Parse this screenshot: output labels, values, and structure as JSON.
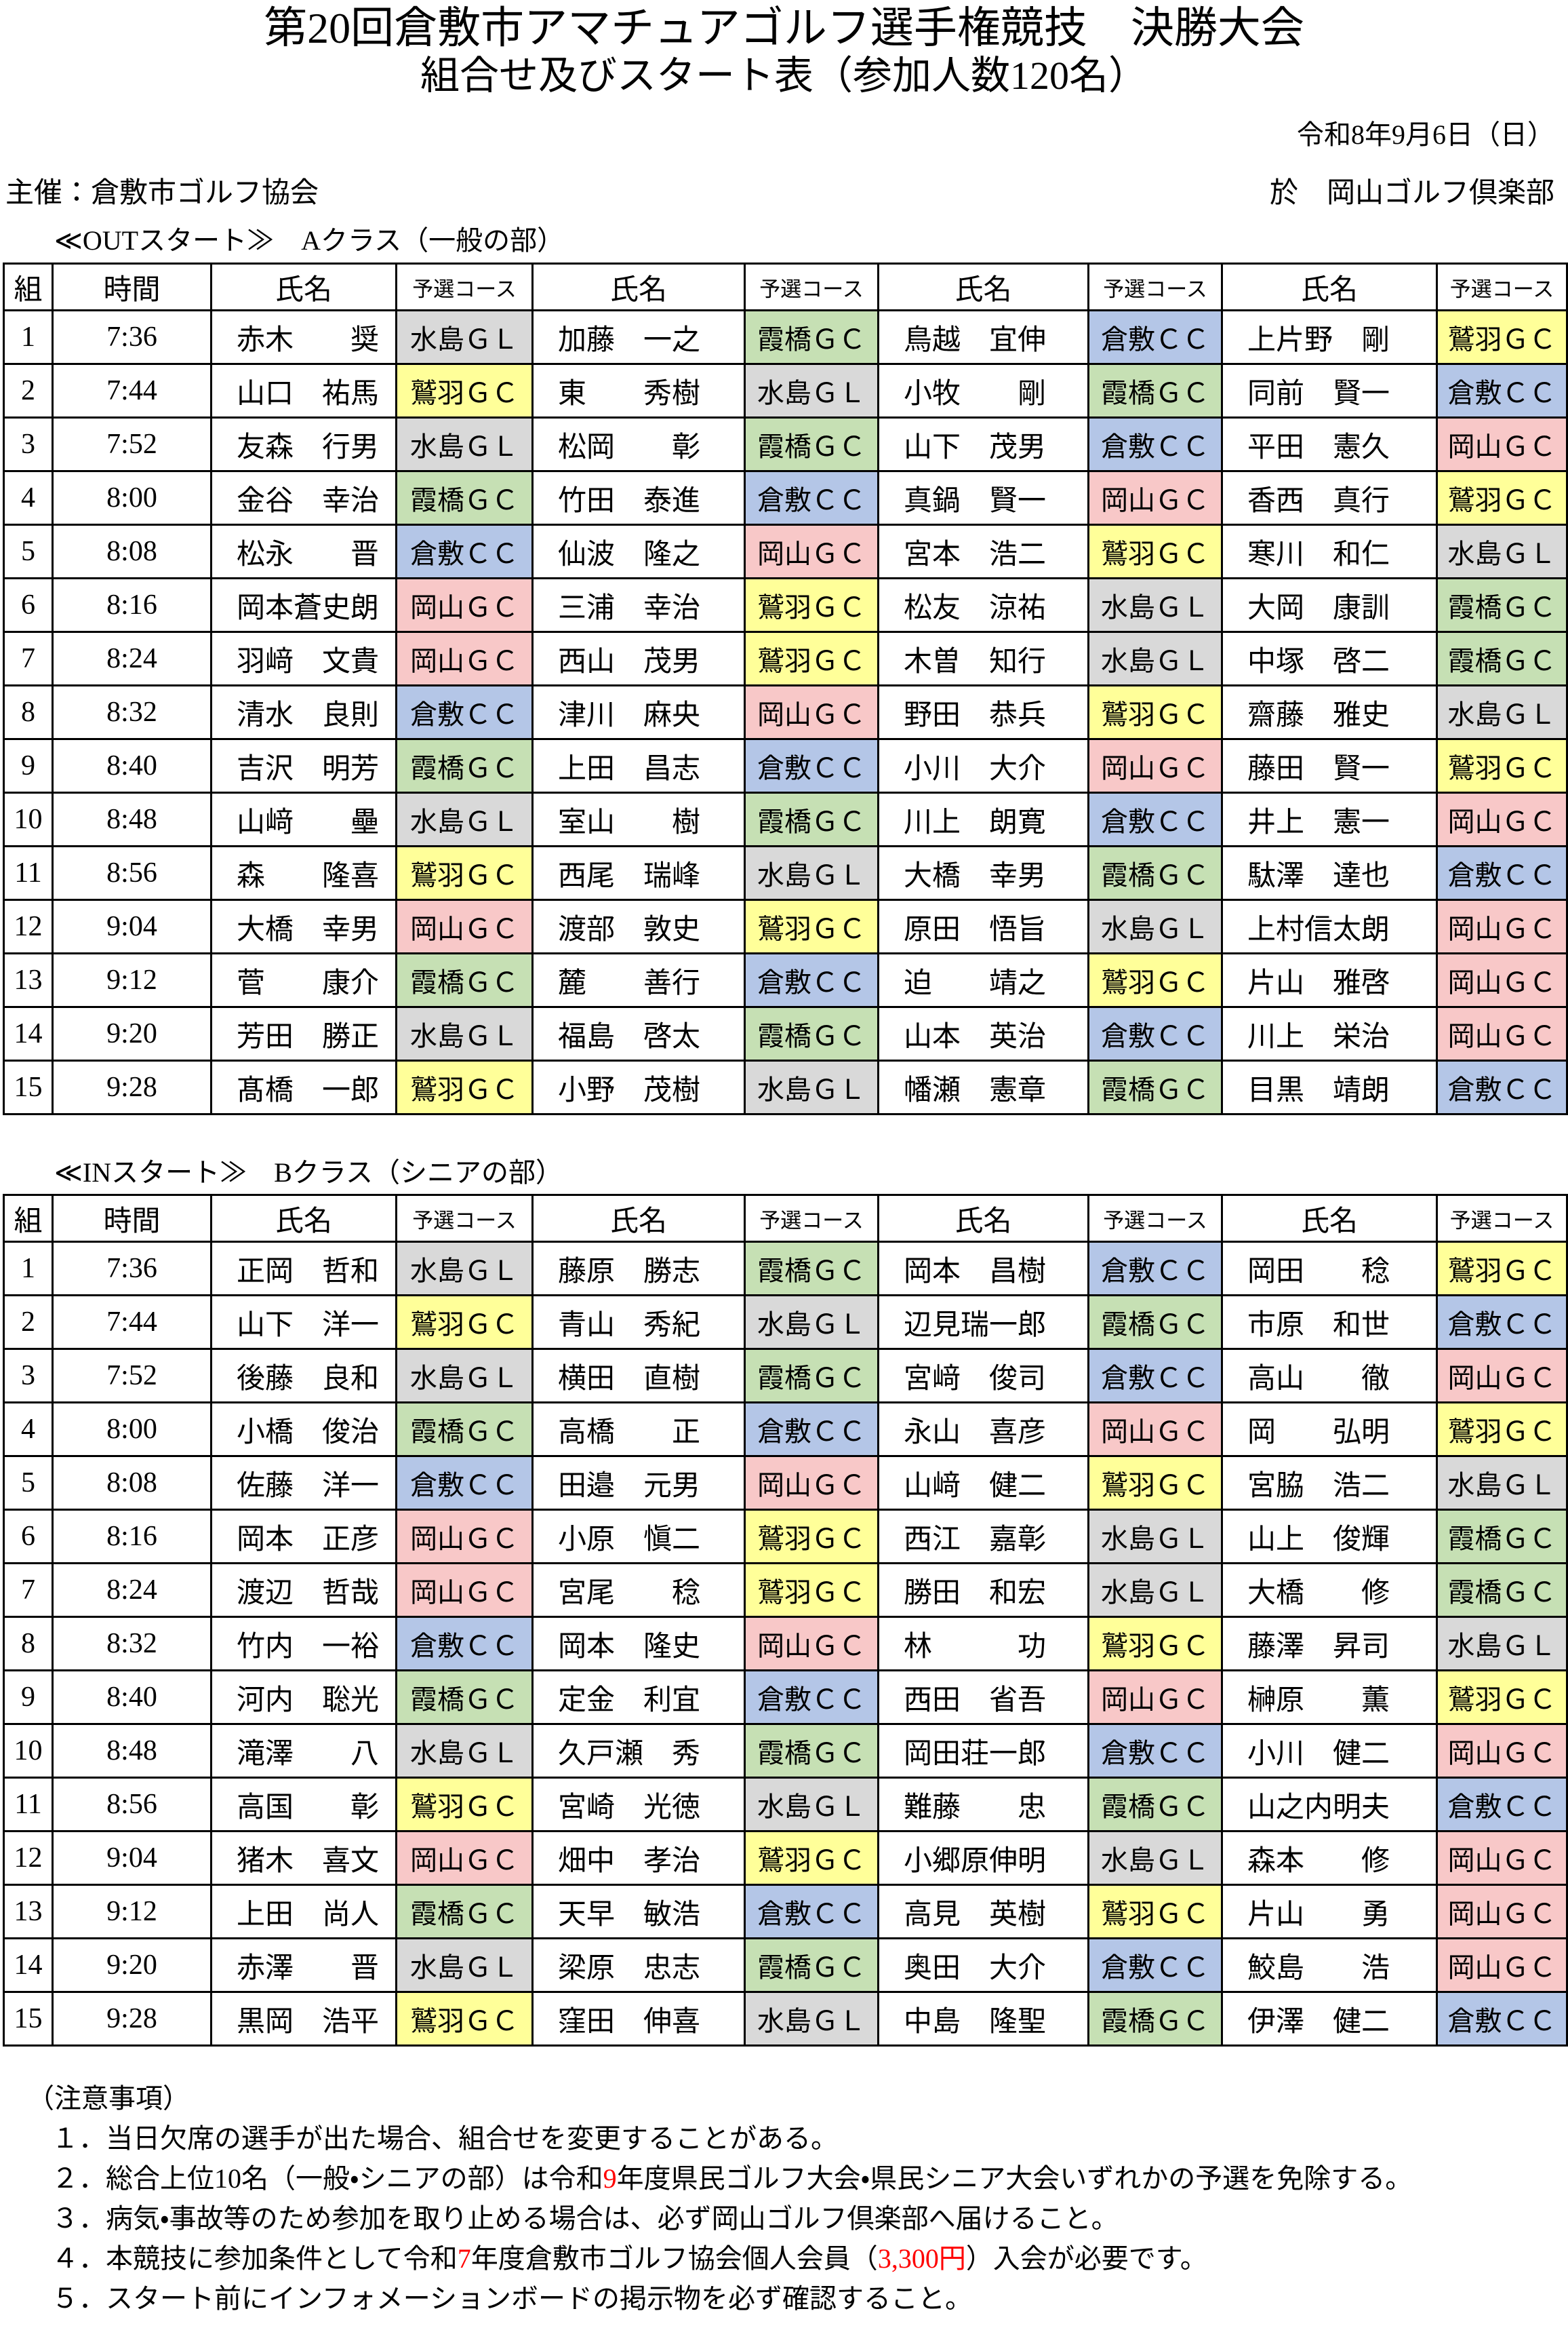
{
  "header": {
    "title": "第20回倉敷市アマチュアゴルフ選手権競技　決勝大会",
    "subtitle": "組合せ及びスタート表（参加人数120名）",
    "date": "令和8年9月6日（日）",
    "organizer": "主催：倉敷市ゴルフ協会",
    "venue": "於　岡山ゴルフ倶楽部"
  },
  "course_colors": {
    "水島ＧＬ": "#d9d9d9",
    "霞橋ＧＣ": "#c6e0b4",
    "倉敷ＣＣ": "#b4c6e7",
    "岡山ＧＣ": "#f8c8c8",
    "鷲羽ＧＣ": "#ffff99"
  },
  "sections": [
    {
      "heading": "≪OUTスタート≫　Aクラス（一般の部）",
      "header": [
        "組",
        "時間",
        "氏名",
        "予選コース"
      ],
      "rows": [
        {
          "group": 1,
          "time": "7:36",
          "players": [
            [
              "赤木　　奨",
              "水島ＧＬ"
            ],
            [
              "加藤　一之",
              "霞橋ＧＣ"
            ],
            [
              "鳥越　宜伸",
              "倉敷ＣＣ"
            ],
            [
              "上片野　剛",
              "鷲羽ＧＣ"
            ]
          ]
        },
        {
          "group": 2,
          "time": "7:44",
          "players": [
            [
              "山口　祐馬",
              "鷲羽ＧＣ"
            ],
            [
              "東　　秀樹",
              "水島ＧＬ"
            ],
            [
              "小牧　　剛",
              "霞橋ＧＣ"
            ],
            [
              "同前　賢一",
              "倉敷ＣＣ"
            ]
          ]
        },
        {
          "group": 3,
          "time": "7:52",
          "players": [
            [
              "友森　行男",
              "水島ＧＬ"
            ],
            [
              "松岡　　彰",
              "霞橋ＧＣ"
            ],
            [
              "山下　茂男",
              "倉敷ＣＣ"
            ],
            [
              "平田　憲久",
              "岡山ＧＣ"
            ]
          ]
        },
        {
          "group": 4,
          "time": "8:00",
          "players": [
            [
              "金谷　幸治",
              "霞橋ＧＣ"
            ],
            [
              "竹田　泰進",
              "倉敷ＣＣ"
            ],
            [
              "真鍋　賢一",
              "岡山ＧＣ"
            ],
            [
              "香西　真行",
              "鷲羽ＧＣ"
            ]
          ]
        },
        {
          "group": 5,
          "time": "8:08",
          "players": [
            [
              "松永　　晋",
              "倉敷ＣＣ"
            ],
            [
              "仙波　隆之",
              "岡山ＧＣ"
            ],
            [
              "宮本　浩二",
              "鷲羽ＧＣ"
            ],
            [
              "寒川　和仁",
              "水島ＧＬ"
            ]
          ]
        },
        {
          "group": 6,
          "time": "8:16",
          "players": [
            [
              "岡本蒼史朗",
              "岡山ＧＣ"
            ],
            [
              "三浦　幸治",
              "鷲羽ＧＣ"
            ],
            [
              "松友　涼祐",
              "水島ＧＬ"
            ],
            [
              "大岡　康訓",
              "霞橋ＧＣ"
            ]
          ]
        },
        {
          "group": 7,
          "time": "8:24",
          "players": [
            [
              "羽﨑　文貴",
              "岡山ＧＣ"
            ],
            [
              "西山　茂男",
              "鷲羽ＧＣ"
            ],
            [
              "木曽　知行",
              "水島ＧＬ"
            ],
            [
              "中塚　啓二",
              "霞橋ＧＣ"
            ]
          ]
        },
        {
          "group": 8,
          "time": "8:32",
          "players": [
            [
              "清水　良則",
              "倉敷ＣＣ"
            ],
            [
              "津川　麻央",
              "岡山ＧＣ"
            ],
            [
              "野田　恭兵",
              "鷲羽ＧＣ"
            ],
            [
              "齋藤　雅史",
              "水島ＧＬ"
            ]
          ]
        },
        {
          "group": 9,
          "time": "8:40",
          "players": [
            [
              "吉沢　明芳",
              "霞橋ＧＣ"
            ],
            [
              "上田　昌志",
              "倉敷ＣＣ"
            ],
            [
              "小川　大介",
              "岡山ＧＣ"
            ],
            [
              "藤田　賢一",
              "鷲羽ＧＣ"
            ]
          ]
        },
        {
          "group": 10,
          "time": "8:48",
          "players": [
            [
              "山﨑　　壘",
              "水島ＧＬ"
            ],
            [
              "室山　　樹",
              "霞橋ＧＣ"
            ],
            [
              "川上　朗寛",
              "倉敷ＣＣ"
            ],
            [
              "井上　憲一",
              "岡山ＧＣ"
            ]
          ]
        },
        {
          "group": 11,
          "time": "8:56",
          "players": [
            [
              "森　　隆喜",
              "鷲羽ＧＣ"
            ],
            [
              "西尾　瑞峰",
              "水島ＧＬ"
            ],
            [
              "大橋　幸男",
              "霞橋ＧＣ"
            ],
            [
              "駄澤　達也",
              "倉敷ＣＣ"
            ]
          ]
        },
        {
          "group": 12,
          "time": "9:04",
          "players": [
            [
              "大橋　幸男",
              "岡山ＧＣ"
            ],
            [
              "渡部　敦史",
              "鷲羽ＧＣ"
            ],
            [
              "原田　悟旨",
              "水島ＧＬ"
            ],
            [
              "上村信太朗",
              "岡山ＧＣ"
            ]
          ]
        },
        {
          "group": 13,
          "time": "9:12",
          "players": [
            [
              "菅　　康介",
              "霞橋ＧＣ"
            ],
            [
              "麓　　善行",
              "倉敷ＣＣ"
            ],
            [
              "迫　　靖之",
              "鷲羽ＧＣ"
            ],
            [
              "片山　雅啓",
              "岡山ＧＣ"
            ]
          ]
        },
        {
          "group": 14,
          "time": "9:20",
          "players": [
            [
              "芳田　勝正",
              "水島ＧＬ"
            ],
            [
              "福島　啓太",
              "霞橋ＧＣ"
            ],
            [
              "山本　英治",
              "倉敷ＣＣ"
            ],
            [
              "川上　栄治",
              "岡山ＧＣ"
            ]
          ]
        },
        {
          "group": 15,
          "time": "9:28",
          "players": [
            [
              "髙橋　一郎",
              "鷲羽ＧＣ"
            ],
            [
              "小野　茂樹",
              "水島ＧＬ"
            ],
            [
              "幡瀬　憲章",
              "霞橋ＧＣ"
            ],
            [
              "目黒　靖朗",
              "倉敷ＣＣ"
            ]
          ]
        }
      ]
    },
    {
      "heading": "≪INスタート≫　Bクラス（シニアの部）",
      "header": [
        "組",
        "時間",
        "氏名",
        "予選コース"
      ],
      "rows": [
        {
          "group": 1,
          "time": "7:36",
          "players": [
            [
              "正岡　哲和",
              "水島ＧＬ"
            ],
            [
              "藤原　勝志",
              "霞橋ＧＣ"
            ],
            [
              "岡本　昌樹",
              "倉敷ＣＣ"
            ],
            [
              "岡田　　稔",
              "鷲羽ＧＣ"
            ]
          ]
        },
        {
          "group": 2,
          "time": "7:44",
          "players": [
            [
              "山下　洋一",
              "鷲羽ＧＣ"
            ],
            [
              "青山　秀紀",
              "水島ＧＬ"
            ],
            [
              "辺見瑞一郎",
              "霞橋ＧＣ"
            ],
            [
              "市原　和世",
              "倉敷ＣＣ"
            ]
          ]
        },
        {
          "group": 3,
          "time": "7:52",
          "players": [
            [
              "後藤　良和",
              "水島ＧＬ"
            ],
            [
              "横田　直樹",
              "霞橋ＧＣ"
            ],
            [
              "宮﨑　俊司",
              "倉敷ＣＣ"
            ],
            [
              "高山　　徹",
              "岡山ＧＣ"
            ]
          ]
        },
        {
          "group": 4,
          "time": "8:00",
          "players": [
            [
              "小橋　俊治",
              "霞橋ＧＣ"
            ],
            [
              "高橋　　正",
              "倉敷ＣＣ"
            ],
            [
              "永山　喜彦",
              "岡山ＧＣ"
            ],
            [
              "岡　　弘明",
              "鷲羽ＧＣ"
            ]
          ]
        },
        {
          "group": 5,
          "time": "8:08",
          "players": [
            [
              "佐藤　洋一",
              "倉敷ＣＣ"
            ],
            [
              "田邉　元男",
              "岡山ＧＣ"
            ],
            [
              "山﨑　健二",
              "鷲羽ＧＣ"
            ],
            [
              "宮脇　浩二",
              "水島ＧＬ"
            ]
          ]
        },
        {
          "group": 6,
          "time": "8:16",
          "players": [
            [
              "岡本　正彦",
              "岡山ＧＣ"
            ],
            [
              "小原　愼二",
              "鷲羽ＧＣ"
            ],
            [
              "西江　嘉彰",
              "水島ＧＬ"
            ],
            [
              "山上　俊輝",
              "霞橋ＧＣ"
            ]
          ]
        },
        {
          "group": 7,
          "time": "8:24",
          "players": [
            [
              "渡辺　哲哉",
              "岡山ＧＣ"
            ],
            [
              "宮尾　　稔",
              "鷲羽ＧＣ"
            ],
            [
              "勝田　和宏",
              "水島ＧＬ"
            ],
            [
              "大橋　　修",
              "霞橋ＧＣ"
            ]
          ]
        },
        {
          "group": 8,
          "time": "8:32",
          "players": [
            [
              "竹内　一裕",
              "倉敷ＣＣ"
            ],
            [
              "岡本　隆史",
              "岡山ＧＣ"
            ],
            [
              "林　　　功",
              "鷲羽ＧＣ"
            ],
            [
              "藤澤　昇司",
              "水島ＧＬ"
            ]
          ]
        },
        {
          "group": 9,
          "time": "8:40",
          "players": [
            [
              "河内　聡光",
              "霞橋ＧＣ"
            ],
            [
              "定金　利宜",
              "倉敷ＣＣ"
            ],
            [
              "西田　省吾",
              "岡山ＧＣ"
            ],
            [
              "榊原　　薫",
              "鷲羽ＧＣ"
            ]
          ]
        },
        {
          "group": 10,
          "time": "8:48",
          "players": [
            [
              "滝澤　　八",
              "水島ＧＬ"
            ],
            [
              "久戸瀬　秀",
              "霞橋ＧＣ"
            ],
            [
              "岡田荘一郎",
              "倉敷ＣＣ"
            ],
            [
              "小川　健二",
              "岡山ＧＣ"
            ]
          ]
        },
        {
          "group": 11,
          "time": "8:56",
          "players": [
            [
              "高国　　彰",
              "鷲羽ＧＣ"
            ],
            [
              "宮崎　光徳",
              "水島ＧＬ"
            ],
            [
              "難藤　　忠",
              "霞橋ＧＣ"
            ],
            [
              "山之内明夫",
              "倉敷ＣＣ"
            ]
          ]
        },
        {
          "group": 12,
          "time": "9:04",
          "players": [
            [
              "猪木　喜文",
              "岡山ＧＣ"
            ],
            [
              "畑中　孝治",
              "鷲羽ＧＣ"
            ],
            [
              "小郷原伸明",
              "水島ＧＬ"
            ],
            [
              "森本　　修",
              "岡山ＧＣ"
            ]
          ]
        },
        {
          "group": 13,
          "time": "9:12",
          "players": [
            [
              "上田　尚人",
              "霞橋ＧＣ"
            ],
            [
              "天早　敏浩",
              "倉敷ＣＣ"
            ],
            [
              "高見　英樹",
              "鷲羽ＧＣ"
            ],
            [
              "片山　　勇",
              "岡山ＧＣ"
            ]
          ]
        },
        {
          "group": 14,
          "time": "9:20",
          "players": [
            [
              "赤澤　　晋",
              "水島ＧＬ"
            ],
            [
              "梁原　忠志",
              "霞橋ＧＣ"
            ],
            [
              "奥田　大介",
              "倉敷ＣＣ"
            ],
            [
              "鮫島　　浩",
              "岡山ＧＣ"
            ]
          ]
        },
        {
          "group": 15,
          "time": "9:28",
          "players": [
            [
              "黒岡　浩平",
              "鷲羽ＧＣ"
            ],
            [
              "窪田　伸喜",
              "水島ＧＬ"
            ],
            [
              "中島　隆聖",
              "霞橋ＧＣ"
            ],
            [
              "伊澤　健二",
              "倉敷ＣＣ"
            ]
          ]
        }
      ]
    }
  ],
  "notes": {
    "title": "（注意事項）",
    "items": [
      [
        {
          "text": "１．当日欠席の選手が出た場合、組合せを変更することがある。"
        }
      ],
      [
        {
          "text": "２．総合上位10名（一般・シニアの部）は令和"
        },
        {
          "text": "9",
          "color": "#ff0000"
        },
        {
          "text": "年度県民ゴルフ大会・県民シニア大会いずれかの予選を免除する。"
        }
      ],
      [
        {
          "text": "３．病気・事故等のため参加を取り止める場合は、必ず岡山ゴルフ倶楽部へ届けること。"
        }
      ],
      [
        {
          "text": "４．本競技に参加条件として令和"
        },
        {
          "text": "7",
          "color": "#ff0000"
        },
        {
          "text": "年度倉敷市ゴルフ協会個人会員（"
        },
        {
          "text": "3,300円",
          "color": "#ff0000"
        },
        {
          "text": "）入会が必要です。"
        }
      ],
      [
        {
          "text": "５．スタート前にインフォメーションボードの掲示物を必ず確認すること。"
        }
      ]
    ]
  }
}
